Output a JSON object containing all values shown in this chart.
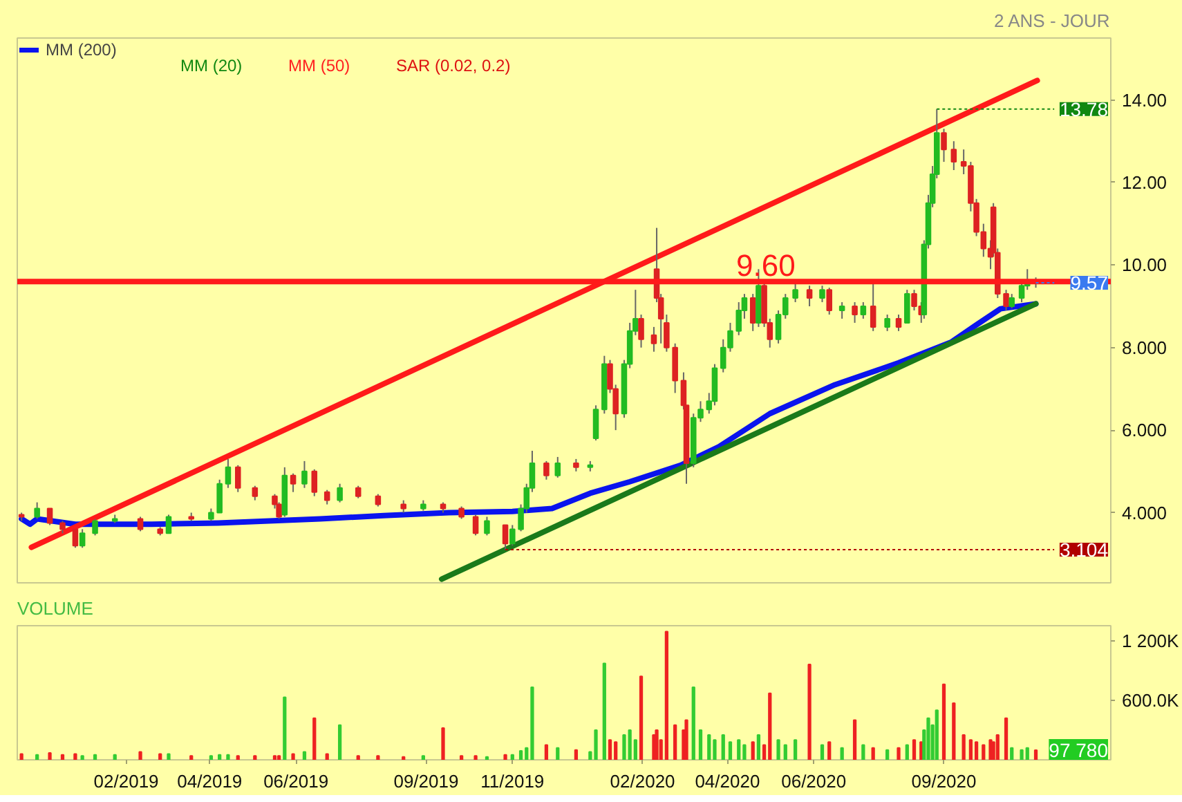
{
  "chart_data": [
    {
      "type": "candlestick",
      "subtitle": "2 ANS - JOUR",
      "x": [
        "2018-11-19",
        "2018-11-30",
        "2018-12-09",
        "2018-12-18",
        "2018-12-27",
        "2019-01-01",
        "2019-01-10",
        "2019-01-24",
        "2019-02-11",
        "2019-02-25",
        "2019-03-03",
        "2019-03-19",
        "2019-04-02",
        "2019-04-08",
        "2019-04-14",
        "2019-04-21",
        "2019-05-03",
        "2019-05-17",
        "2019-05-20",
        "2019-05-24",
        "2019-05-30",
        "2019-06-07",
        "2019-06-14",
        "2019-06-23",
        "2019-07-02",
        "2019-07-15",
        "2019-07-29",
        "2019-08-16",
        "2019-08-30",
        "2019-09-13",
        "2019-09-26",
        "2019-10-06",
        "2019-10-14",
        "2019-10-27",
        "2019-11-01",
        "2019-11-07",
        "2019-11-11",
        "2019-11-15",
        "2019-11-25",
        "2019-12-03",
        "2019-12-16",
        "2019-12-26",
        "2019-12-30",
        "2020-01-05",
        "2020-01-09",
        "2020-01-13",
        "2020-01-19",
        "2020-01-23",
        "2020-01-27",
        "2020-01-31",
        "2020-02-09",
        "2020-02-11",
        "2020-02-14",
        "2020-02-18",
        "2020-02-24",
        "2020-03-01",
        "2020-03-03",
        "2020-03-08",
        "2020-03-13",
        "2020-03-19",
        "2020-03-23",
        "2020-03-29",
        "2020-04-03",
        "2020-04-09",
        "2020-04-13",
        "2020-04-19",
        "2020-04-23",
        "2020-04-27",
        "2020-05-01",
        "2020-05-07",
        "2020-05-12",
        "2020-05-19",
        "2020-05-29",
        "2020-06-07",
        "2020-06-12",
        "2020-06-21",
        "2020-06-30",
        "2020-07-06",
        "2020-07-13",
        "2020-07-23",
        "2020-07-31",
        "2020-08-06",
        "2020-08-11",
        "2020-08-16",
        "2020-08-18",
        "2020-08-21",
        "2020-08-24",
        "2020-08-27",
        "2020-09-01",
        "2020-09-08",
        "2020-09-15",
        "2020-09-20",
        "2020-09-24",
        "2020-09-29",
        "2020-10-04",
        "2020-10-06",
        "2020-10-09",
        "2020-10-15",
        "2020-10-19",
        "2020-10-26",
        "2020-10-30",
        "2020-11-05"
      ],
      "xlim": [
        "2018-11-16",
        "2020-12-28"
      ],
      "ylim": [
        2.3,
        15.5
      ],
      "yticks": [
        {
          "value": 4,
          "label": "4.000"
        },
        {
          "value": 6,
          "label": "6.000"
        },
        {
          "value": 8,
          "label": "8.000"
        },
        {
          "value": 10,
          "label": "10.00"
        },
        {
          "value": 12,
          "label": "12.00"
        },
        {
          "value": 14,
          "label": "14.00"
        }
      ],
      "tick_labels": "y",
      "legend": "top left",
      "ref_lines": [
        {
          "axis": "y",
          "value": 9.6,
          "label": "9.60",
          "color": "#ff1a1a"
        }
      ],
      "annotations": [
        {
          "text": "13.78",
          "x": "2020-08-27",
          "y": 13.78
        },
        {
          "text": "9.57",
          "x": "2020-11-05",
          "y": 9.57
        },
        {
          "text": "3.104",
          "x": "2019-10-27",
          "y": 3.104
        },
        "MM (20)",
        "MM (50)",
        "SAR (0.02, 0.2)"
      ],
      "series": [
        {
          "type": "candlestick",
          "ohlc": [
            [
              3.95,
              4.0,
              3.8,
              3.9
            ],
            [
              3.9,
              4.25,
              3.85,
              4.1
            ],
            [
              4.1,
              4.1,
              3.7,
              3.75
            ],
            [
              3.75,
              3.8,
              3.5,
              3.6
            ],
            [
              3.6,
              3.6,
              3.15,
              3.2
            ],
            [
              3.2,
              3.6,
              3.15,
              3.5
            ],
            [
              3.5,
              3.85,
              3.45,
              3.8
            ],
            [
              3.8,
              3.95,
              3.75,
              3.85
            ],
            [
              3.85,
              3.9,
              3.55,
              3.6
            ],
            [
              3.6,
              3.65,
              3.45,
              3.5
            ],
            [
              3.5,
              3.95,
              3.5,
              3.9
            ],
            [
              3.9,
              4.0,
              3.8,
              3.85
            ],
            [
              3.85,
              4.1,
              3.8,
              4.0
            ],
            [
              4.0,
              4.8,
              4.0,
              4.7
            ],
            [
              4.7,
              5.3,
              4.6,
              5.1
            ],
            [
              5.1,
              5.15,
              4.5,
              4.6
            ],
            [
              4.6,
              4.65,
              4.3,
              4.4
            ],
            [
              4.4,
              4.45,
              4.1,
              4.2
            ],
            [
              4.2,
              4.25,
              3.85,
              3.9
            ],
            [
              3.95,
              5.1,
              3.9,
              4.9
            ],
            [
              4.9,
              4.95,
              4.5,
              4.7
            ],
            [
              4.7,
              5.25,
              4.6,
              5.0
            ],
            [
              5.0,
              5.05,
              4.4,
              4.5
            ],
            [
              4.5,
              4.55,
              4.2,
              4.3
            ],
            [
              4.3,
              4.7,
              4.25,
              4.6
            ],
            [
              4.6,
              4.65,
              4.35,
              4.4
            ],
            [
              4.4,
              4.45,
              4.15,
              4.2
            ],
            [
              4.2,
              4.3,
              4.0,
              4.1
            ],
            [
              4.1,
              4.3,
              4.05,
              4.2
            ],
            [
              4.2,
              4.25,
              4.0,
              4.1
            ],
            [
              4.1,
              4.15,
              3.85,
              3.9
            ],
            [
              3.9,
              3.95,
              3.45,
              3.5
            ],
            [
              3.5,
              3.9,
              3.45,
              3.8
            ],
            [
              3.7,
              3.7,
              3.104,
              3.25
            ],
            [
              3.25,
              3.7,
              3.2,
              3.6
            ],
            [
              3.6,
              4.2,
              3.55,
              4.1
            ],
            [
              4.1,
              4.7,
              4.0,
              4.6
            ],
            [
              4.6,
              5.5,
              4.5,
              5.2
            ],
            [
              5.2,
              5.25,
              4.8,
              4.9
            ],
            [
              4.9,
              5.35,
              4.85,
              5.2
            ],
            [
              5.2,
              5.3,
              5.0,
              5.1
            ],
            [
              5.1,
              5.25,
              5.0,
              5.15
            ],
            [
              5.8,
              6.6,
              5.75,
              6.5
            ],
            [
              6.5,
              7.8,
              6.4,
              7.6
            ],
            [
              7.6,
              7.7,
              6.9,
              7.0
            ],
            [
              7.0,
              7.1,
              6.0,
              6.4
            ],
            [
              6.4,
              7.7,
              6.3,
              7.6
            ],
            [
              7.6,
              8.6,
              7.5,
              8.4
            ],
            [
              8.4,
              9.4,
              8.3,
              8.7
            ],
            [
              8.7,
              8.8,
              8.0,
              8.2
            ],
            [
              8.3,
              8.5,
              7.9,
              8.1
            ],
            [
              9.9,
              10.9,
              9.1,
              9.2
            ],
            [
              9.2,
              9.3,
              8.1,
              8.7
            ],
            [
              8.6,
              8.8,
              7.9,
              8.0
            ],
            [
              8.0,
              8.1,
              6.9,
              7.2
            ],
            [
              7.2,
              7.4,
              6.5,
              6.6
            ],
            [
              6.6,
              6.6,
              4.7,
              5.2
            ],
            [
              5.2,
              6.4,
              5.1,
              6.3
            ],
            [
              6.3,
              6.7,
              6.2,
              6.5
            ],
            [
              6.5,
              6.9,
              6.4,
              6.7
            ],
            [
              6.7,
              7.6,
              6.6,
              7.5
            ],
            [
              7.5,
              8.2,
              7.4,
              8.0
            ],
            [
              8.0,
              8.6,
              7.9,
              8.4
            ],
            [
              8.4,
              9.1,
              8.3,
              8.9
            ],
            [
              8.9,
              9.3,
              8.7,
              9.2
            ],
            [
              9.2,
              9.3,
              8.4,
              8.6
            ],
            [
              8.6,
              9.9,
              8.5,
              9.5
            ],
            [
              9.5,
              9.6,
              8.5,
              8.6
            ],
            [
              8.6,
              8.7,
              8.0,
              8.2
            ],
            [
              8.2,
              8.9,
              8.1,
              8.8
            ],
            [
              8.8,
              9.3,
              8.7,
              9.2
            ],
            [
              9.2,
              9.6,
              9.1,
              9.4
            ],
            [
              9.4,
              9.5,
              9.0,
              9.2
            ],
            [
              9.2,
              9.5,
              9.1,
              9.4
            ],
            [
              9.4,
              9.45,
              8.8,
              8.9
            ],
            [
              8.9,
              9.1,
              8.7,
              9.0
            ],
            [
              9.0,
              9.1,
              8.6,
              8.8
            ],
            [
              8.8,
              9.1,
              8.7,
              9.0
            ],
            [
              9.0,
              9.6,
              8.4,
              8.5
            ],
            [
              8.5,
              8.8,
              8.4,
              8.7
            ],
            [
              8.7,
              8.8,
              8.4,
              8.5
            ],
            [
              8.6,
              9.4,
              8.6,
              9.3
            ],
            [
              9.3,
              9.4,
              8.9,
              9.0
            ],
            [
              9.0,
              9.1,
              8.6,
              8.8
            ],
            [
              8.8,
              10.6,
              8.7,
              10.5
            ],
            [
              10.5,
              11.7,
              10.4,
              11.5
            ],
            [
              11.5,
              12.4,
              11.4,
              12.2
            ],
            [
              12.2,
              13.78,
              12.1,
              13.2
            ],
            [
              13.2,
              13.3,
              12.5,
              12.8
            ],
            [
              12.8,
              13.0,
              12.3,
              12.5
            ],
            [
              12.5,
              12.8,
              12.2,
              12.4
            ],
            [
              12.4,
              12.5,
              11.3,
              11.5
            ],
            [
              11.5,
              11.6,
              10.7,
              10.8
            ],
            [
              10.8,
              11.0,
              10.2,
              10.4
            ],
            [
              10.4,
              10.6,
              9.9,
              10.2
            ],
            [
              11.4,
              11.5,
              10.2,
              10.3
            ],
            [
              10.3,
              10.4,
              9.2,
              9.3
            ],
            [
              9.3,
              9.4,
              8.9,
              9.0
            ],
            [
              9.0,
              9.3,
              8.95,
              9.2
            ],
            [
              9.2,
              9.6,
              9.1,
              9.5
            ],
            [
              9.5,
              9.9,
              9.4,
              9.6
            ],
            [
              9.6,
              9.7,
              9.45,
              9.57
            ]
          ],
          "colors": [
            "#dd2222",
            "#22bb22",
            "#dd2222",
            "#dd2222",
            "#dd2222",
            "#22bb22",
            "#22bb22",
            "#22bb22",
            "#dd2222",
            "#dd2222",
            "#22bb22",
            "#dd2222",
            "#22bb22",
            "#22bb22",
            "#22bb22",
            "#dd2222",
            "#dd2222",
            "#dd2222",
            "#dd2222",
            "#22bb22",
            "#dd2222",
            "#22bb22",
            "#dd2222",
            "#dd2222",
            "#22bb22",
            "#dd2222",
            "#dd2222",
            "#dd2222",
            "#22bb22",
            "#dd2222",
            "#dd2222",
            "#dd2222",
            "#22bb22",
            "#dd2222",
            "#22bb22",
            "#22bb22",
            "#22bb22",
            "#22bb22",
            "#dd2222",
            "#22bb22",
            "#dd2222",
            "#22bb22",
            "#22bb22",
            "#22bb22",
            "#dd2222",
            "#dd2222",
            "#22bb22",
            "#22bb22",
            "#22bb22",
            "#dd2222",
            "#dd2222",
            "#dd2222",
            "#dd2222",
            "#dd2222",
            "#dd2222",
            "#dd2222",
            "#dd2222",
            "#22bb22",
            "#22bb22",
            "#22bb22",
            "#22bb22",
            "#22bb22",
            "#22bb22",
            "#22bb22",
            "#22bb22",
            "#dd2222",
            "#22bb22",
            "#dd2222",
            "#dd2222",
            "#22bb22",
            "#22bb22",
            "#22bb22",
            "#dd2222",
            "#22bb22",
            "#dd2222",
            "#22bb22",
            "#dd2222",
            "#22bb22",
            "#dd2222",
            "#22bb22",
            "#dd2222",
            "#22bb22",
            "#dd2222",
            "#dd2222",
            "#22bb22",
            "#22bb22",
            "#22bb22",
            "#22bb22",
            "#dd2222",
            "#dd2222",
            "#dd2222",
            "#dd2222",
            "#dd2222",
            "#dd2222",
            "#dd2222",
            "#dd2222",
            "#dd2222",
            "#dd2222",
            "#22bb22",
            "#22bb22",
            "#22bb22",
            "#dd2222"
          ]
        },
        {
          "type": "line",
          "name": "MM (200)",
          "color": "#0a14ee",
          "x": [
            "2018-11-19",
            "2018-11-25",
            "2018-11-30",
            "2018-12-27",
            "2019-02-19",
            "2019-04-07",
            "2019-06-18",
            "2019-08-02",
            "2019-09-17",
            "2019-11-01",
            "2019-11-29",
            "2019-12-26",
            "2020-01-23",
            "2020-02-28",
            "2020-03-26",
            "2020-05-01",
            "2020-06-16",
            "2020-07-31",
            "2020-09-06",
            "2020-09-24",
            "2020-10-11",
            "2020-11-05"
          ],
          "values": [
            3.85,
            3.72,
            3.85,
            3.72,
            3.72,
            3.75,
            3.85,
            3.93,
            4.0,
            4.03,
            4.1,
            4.47,
            4.75,
            5.15,
            5.6,
            6.4,
            7.1,
            7.63,
            8.13,
            8.55,
            8.94,
            9.06
          ]
        },
        {
          "type": "line",
          "color": "#ff1a1a",
          "x": [
            "2018-11-26",
            "2020-11-06"
          ],
          "values": [
            3.16,
            14.47
          ]
        },
        {
          "type": "line",
          "color": "#1a7a1a",
          "x": [
            "2019-09-12",
            "2020-11-05"
          ],
          "values": [
            2.39,
            9.06
          ]
        }
      ]
    },
    {
      "type": "bar",
      "title": "VOLUME",
      "x": [
        "2018-11-19",
        "2018-11-30",
        "2018-12-09",
        "2018-12-18",
        "2018-12-27",
        "2019-01-01",
        "2019-01-10",
        "2019-01-24",
        "2019-02-11",
        "2019-02-25",
        "2019-03-03",
        "2019-03-19",
        "2019-04-02",
        "2019-04-08",
        "2019-04-14",
        "2019-04-21",
        "2019-05-03",
        "2019-05-17",
        "2019-05-20",
        "2019-05-24",
        "2019-05-30",
        "2019-06-07",
        "2019-06-14",
        "2019-06-23",
        "2019-07-02",
        "2019-07-15",
        "2019-07-29",
        "2019-08-16",
        "2019-08-30",
        "2019-09-13",
        "2019-09-26",
        "2019-10-06",
        "2019-10-14",
        "2019-10-27",
        "2019-11-01",
        "2019-11-07",
        "2019-11-11",
        "2019-11-15",
        "2019-11-25",
        "2019-12-03",
        "2019-12-16",
        "2019-12-26",
        "2019-12-30",
        "2020-01-05",
        "2020-01-09",
        "2020-01-13",
        "2020-01-19",
        "2020-01-23",
        "2020-01-27",
        "2020-01-31",
        "2020-02-09",
        "2020-02-11",
        "2020-02-14",
        "2020-02-18",
        "2020-02-24",
        "2020-03-01",
        "2020-03-03",
        "2020-03-08",
        "2020-03-13",
        "2020-03-19",
        "2020-03-23",
        "2020-03-29",
        "2020-04-03",
        "2020-04-09",
        "2020-04-13",
        "2020-04-19",
        "2020-04-23",
        "2020-04-27",
        "2020-05-01",
        "2020-05-07",
        "2020-05-12",
        "2020-05-19",
        "2020-05-29",
        "2020-06-07",
        "2020-06-12",
        "2020-06-21",
        "2020-06-30",
        "2020-07-06",
        "2020-07-13",
        "2020-07-23",
        "2020-07-31",
        "2020-08-06",
        "2020-08-11",
        "2020-08-16",
        "2020-08-18",
        "2020-08-21",
        "2020-08-24",
        "2020-08-27",
        "2020-09-01",
        "2020-09-08",
        "2020-09-15",
        "2020-09-20",
        "2020-09-24",
        "2020-09-29",
        "2020-10-04",
        "2020-10-06",
        "2020-10-09",
        "2020-10-15",
        "2020-10-19",
        "2020-10-26",
        "2020-10-30",
        "2020-11-05"
      ],
      "values": [
        60,
        50,
        70,
        50,
        60,
        40,
        50,
        50,
        80,
        60,
        60,
        40,
        40,
        50,
        50,
        40,
        40,
        40,
        40,
        630,
        60,
        80,
        420,
        60,
        350,
        40,
        40,
        30,
        40,
        320,
        40,
        40,
        30,
        50,
        50,
        90,
        120,
        730,
        150,
        120,
        100,
        80,
        300,
        970,
        200,
        180,
        250,
        300,
        200,
        840,
        250,
        300,
        200,
        1290,
        350,
        300,
        400,
        730,
        300,
        250,
        200,
        250,
        180,
        200,
        150,
        180,
        250,
        150,
        670,
        200,
        150,
        200,
        960,
        150,
        180,
        120,
        400,
        150,
        120,
        100,
        120,
        150,
        200,
        180,
        300,
        420,
        350,
        500,
        760,
        570,
        250,
        200,
        180,
        150,
        200,
        180,
        250,
        420,
        120,
        100,
        120,
        97.78
      ],
      "colors": [
        "#ee2222",
        "#33cc33",
        "#ee2222",
        "#ee2222",
        "#ee2222",
        "#33cc33",
        "#33cc33",
        "#33cc33",
        "#ee2222",
        "#ee2222",
        "#33cc33",
        "#ee2222",
        "#33cc33",
        "#33cc33",
        "#33cc33",
        "#ee2222",
        "#ee2222",
        "#ee2222",
        "#ee2222",
        "#33cc33",
        "#ee2222",
        "#33cc33",
        "#ee2222",
        "#ee2222",
        "#33cc33",
        "#ee2222",
        "#ee2222",
        "#ee2222",
        "#33cc33",
        "#ee2222",
        "#ee2222",
        "#ee2222",
        "#33cc33",
        "#ee2222",
        "#33cc33",
        "#33cc33",
        "#33cc33",
        "#33cc33",
        "#ee2222",
        "#33cc33",
        "#ee2222",
        "#33cc33",
        "#33cc33",
        "#33cc33",
        "#ee2222",
        "#ee2222",
        "#33cc33",
        "#33cc33",
        "#33cc33",
        "#ee2222",
        "#ee2222",
        "#ee2222",
        "#ee2222",
        "#ee2222",
        "#ee2222",
        "#ee2222",
        "#ee2222",
        "#33cc33",
        "#33cc33",
        "#33cc33",
        "#33cc33",
        "#33cc33",
        "#33cc33",
        "#33cc33",
        "#33cc33",
        "#ee2222",
        "#33cc33",
        "#ee2222",
        "#ee2222",
        "#33cc33",
        "#33cc33",
        "#33cc33",
        "#ee2222",
        "#33cc33",
        "#ee2222",
        "#33cc33",
        "#ee2222",
        "#33cc33",
        "#ee2222",
        "#33cc33",
        "#ee2222",
        "#33cc33",
        "#ee2222",
        "#ee2222",
        "#33cc33",
        "#33cc33",
        "#33cc33",
        "#33cc33",
        "#ee2222",
        "#ee2222",
        "#ee2222",
        "#ee2222",
        "#ee2222",
        "#ee2222",
        "#ee2222",
        "#ee2222",
        "#ee2222",
        "#ee2222",
        "#33cc33",
        "#33cc33",
        "#33cc33",
        "#ee2222"
      ],
      "xlim": [
        "2018-11-16",
        "2020-12-28"
      ],
      "ylim": [
        0,
        1350
      ],
      "xticks": [
        {
          "value": "2019-02-01",
          "label": "02/2019"
        },
        {
          "value": "2019-04-01",
          "label": "04/2019"
        },
        {
          "value": "2019-06-01",
          "label": "06/2019"
        },
        {
          "value": "2019-09-01",
          "label": "09/2019"
        },
        {
          "value": "2019-11-01",
          "label": "11/2019"
        },
        {
          "value": "2020-02-01",
          "label": "02/2020"
        },
        {
          "value": "2020-04-01",
          "label": "04/2020"
        },
        {
          "value": "2020-06-01",
          "label": "06/2020"
        },
        {
          "value": "2020-09-01",
          "label": "09/2020"
        }
      ],
      "yticks": [
        {
          "value": 600,
          "label": "600.0K"
        },
        {
          "value": 1200,
          "label": "1 200K"
        }
      ],
      "annotations": [
        {
          "text": "97 780",
          "y": 97.78
        }
      ]
    }
  ]
}
